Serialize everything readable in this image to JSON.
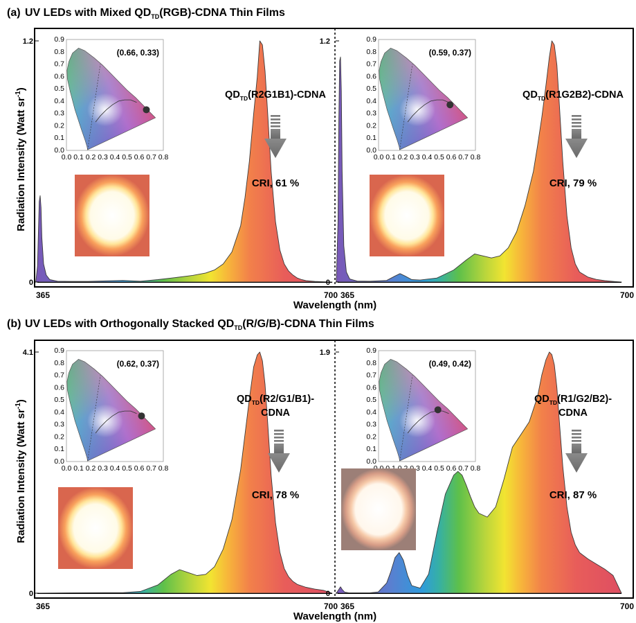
{
  "rows": [
    {
      "letter": "(a)",
      "heading": {
        "pre": "UV LEDs with Mixed QD",
        "sub": "TD",
        "post": "(RGB)-CDNA Thin Films"
      },
      "panels": [
        {
          "ymax_label": "1.2",
          "label_pre": "QD",
          "label_sub": "TD",
          "label_post": [
            "(R2G1B1)-CDNA"
          ],
          "cri": "CRI, 61 %",
          "coord_label": "(0.66, 0.33)"
        },
        {
          "ymax_label": "1.2",
          "label_pre": "QD",
          "label_sub": "TD",
          "label_post": [
            "(R1G2B2)-CDNA"
          ],
          "cri": "CRI, 79 %",
          "coord_label": "(0.59, 0.37)"
        }
      ]
    },
    {
      "letter": "(b)",
      "heading": {
        "pre": "UV LEDs with Orthogonally Stacked QD",
        "sub": "TD",
        "post": "(R/G/B)-CDNA Thin Films"
      },
      "panels": [
        {
          "ymax_label": "4.1",
          "label_pre": "QD",
          "label_sub": "TD",
          "label_post": [
            "(R2/G1/B1)-",
            "CDNA"
          ],
          "cri": "CRI, 78 %",
          "coord_label": "(0.62, 0.37)"
        },
        {
          "ymax_label": "1.9",
          "label_pre": "QD",
          "label_sub": "TD",
          "label_post": [
            "(R1/G2/B2)-",
            "CDNA"
          ],
          "cri": "CRI, 87 %",
          "coord_label": "(0.49, 0.42)"
        }
      ]
    }
  ],
  "axes": {
    "ylabel": "Radiation Intensity (Watt sr",
    "ylabel_sup": "-1",
    "ylabel_close": ")",
    "xlabel": "Wavelength (nm)",
    "xtick_min": "365",
    "xtick_max": "700",
    "y_zero": "0"
  },
  "cie": {
    "yticks": [
      "0.0",
      "0.1",
      "0.2",
      "0.3",
      "0.4",
      "0.5",
      "0.6",
      "0.7",
      "0.8",
      "0.9"
    ],
    "xticks": [
      "0.0",
      "0.1",
      "0.2",
      "0.3",
      "0.4",
      "0.5",
      "0.6",
      "0.7",
      "0.8"
    ]
  },
  "chart_data": [
    {
      "type": "area",
      "xlabel": "Wavelength (nm)",
      "ylabel": "Radiation Intensity (Watt sr-1)",
      "xlim": [
        365,
        700
      ],
      "ylim": [
        0,
        1.2
      ],
      "cie_point": [
        0.66,
        0.33
      ],
      "cri": 61,
      "x": [
        360,
        362,
        363,
        364,
        365,
        366,
        367,
        369,
        372,
        376,
        385,
        400,
        420,
        440,
        460,
        480,
        500,
        520,
        540,
        555,
        565,
        575,
        585,
        595,
        600,
        605,
        610,
        614,
        617,
        620,
        623,
        626,
        630,
        635,
        640,
        645,
        650,
        655,
        660,
        665,
        670,
        680,
        690,
        700
      ],
      "y": [
        0,
        0.08,
        0.25,
        0.4,
        0.43,
        0.37,
        0.22,
        0.09,
        0.035,
        0.012,
        0.004,
        0.003,
        0.003,
        0.006,
        0.008,
        0.004,
        0.012,
        0.022,
        0.033,
        0.045,
        0.06,
        0.09,
        0.15,
        0.28,
        0.42,
        0.6,
        0.84,
        1.02,
        1.2,
        1.18,
        1.05,
        0.84,
        0.55,
        0.3,
        0.16,
        0.09,
        0.055,
        0.035,
        0.02,
        0.012,
        0.007,
        0.003,
        0.0015,
        0
      ]
    },
    {
      "type": "area",
      "xlabel": "Wavelength (nm)",
      "ylabel": "Radiation Intensity (Watt sr-1)",
      "xlim": [
        365,
        700
      ],
      "ylim": [
        0,
        1.2
      ],
      "cie_point": [
        0.59,
        0.37
      ],
      "cri": 79,
      "x": [
        360,
        362,
        363,
        364,
        365,
        366,
        367,
        369,
        372,
        376,
        385,
        400,
        420,
        430,
        436,
        442,
        450,
        460,
        480,
        500,
        515,
        525,
        535,
        545,
        555,
        565,
        575,
        585,
        595,
        600,
        605,
        610,
        614,
        617,
        620,
        623,
        626,
        630,
        635,
        640,
        645,
        650,
        660,
        670,
        680,
        690,
        700
      ],
      "y": [
        0,
        0.3,
        0.8,
        1.1,
        1.12,
        0.95,
        0.55,
        0.18,
        0.05,
        0.015,
        0.005,
        0.004,
        0.008,
        0.03,
        0.042,
        0.03,
        0.012,
        0.01,
        0.02,
        0.06,
        0.11,
        0.14,
        0.13,
        0.12,
        0.13,
        0.17,
        0.25,
        0.38,
        0.55,
        0.68,
        0.82,
        0.98,
        1.12,
        1.2,
        1.18,
        1.08,
        0.88,
        0.6,
        0.33,
        0.17,
        0.09,
        0.05,
        0.025,
        0.013,
        0.007,
        0.003,
        0
      ]
    },
    {
      "type": "area",
      "xlabel": "Wavelength (nm)",
      "ylabel": "Radiation Intensity (Watt sr-1)",
      "xlim": [
        365,
        700
      ],
      "ylim": [
        0,
        4.1
      ],
      "cie_point": [
        0.62,
        0.37
      ],
      "cri": 78,
      "x": [
        360,
        380,
        400,
        440,
        460,
        480,
        500,
        515,
        525,
        535,
        545,
        555,
        565,
        575,
        585,
        595,
        600,
        605,
        610,
        614,
        617,
        620,
        623,
        626,
        630,
        635,
        640,
        645,
        650,
        655,
        660,
        670,
        680,
        690,
        700
      ],
      "y": [
        0,
        0.004,
        0.006,
        0.01,
        0.01,
        0.03,
        0.14,
        0.32,
        0.4,
        0.35,
        0.3,
        0.32,
        0.45,
        0.75,
        1.25,
        2.1,
        2.7,
        3.3,
        3.85,
        4.05,
        4.1,
        3.95,
        3.55,
        2.9,
        2.0,
        1.2,
        0.7,
        0.42,
        0.28,
        0.2,
        0.15,
        0.1,
        0.07,
        0.05,
        0
      ]
    },
    {
      "type": "area",
      "xlabel": "Wavelength (nm)",
      "ylabel": "Radiation Intensity (Watt sr-1)",
      "xlim": [
        365,
        700
      ],
      "ylim": [
        0,
        1.9
      ],
      "cie_point": [
        0.49,
        0.42
      ],
      "cri": 87,
      "x": [
        360,
        363,
        365,
        367,
        370,
        375,
        385,
        400,
        410,
        420,
        425,
        430,
        435,
        440,
        445,
        450,
        460,
        470,
        480,
        490,
        500,
        505,
        510,
        515,
        520,
        525,
        530,
        540,
        550,
        560,
        570,
        580,
        590,
        600,
        605,
        610,
        614,
        617,
        620,
        623,
        626,
        630,
        635,
        640,
        645,
        650,
        660,
        670,
        680,
        690,
        700
      ],
      "y": [
        0,
        0.03,
        0.05,
        0.03,
        0.008,
        0.003,
        0.003,
        0.003,
        0.01,
        0.08,
        0.17,
        0.28,
        0.32,
        0.26,
        0.14,
        0.06,
        0.04,
        0.15,
        0.48,
        0.78,
        0.93,
        0.96,
        0.93,
        0.85,
        0.76,
        0.68,
        0.63,
        0.6,
        0.68,
        0.9,
        1.15,
        1.25,
        1.35,
        1.55,
        1.72,
        1.84,
        1.9,
        1.88,
        1.8,
        1.62,
        1.35,
        1.0,
        0.68,
        0.48,
        0.38,
        0.32,
        0.27,
        0.23,
        0.19,
        0.14,
        0
      ]
    }
  ]
}
